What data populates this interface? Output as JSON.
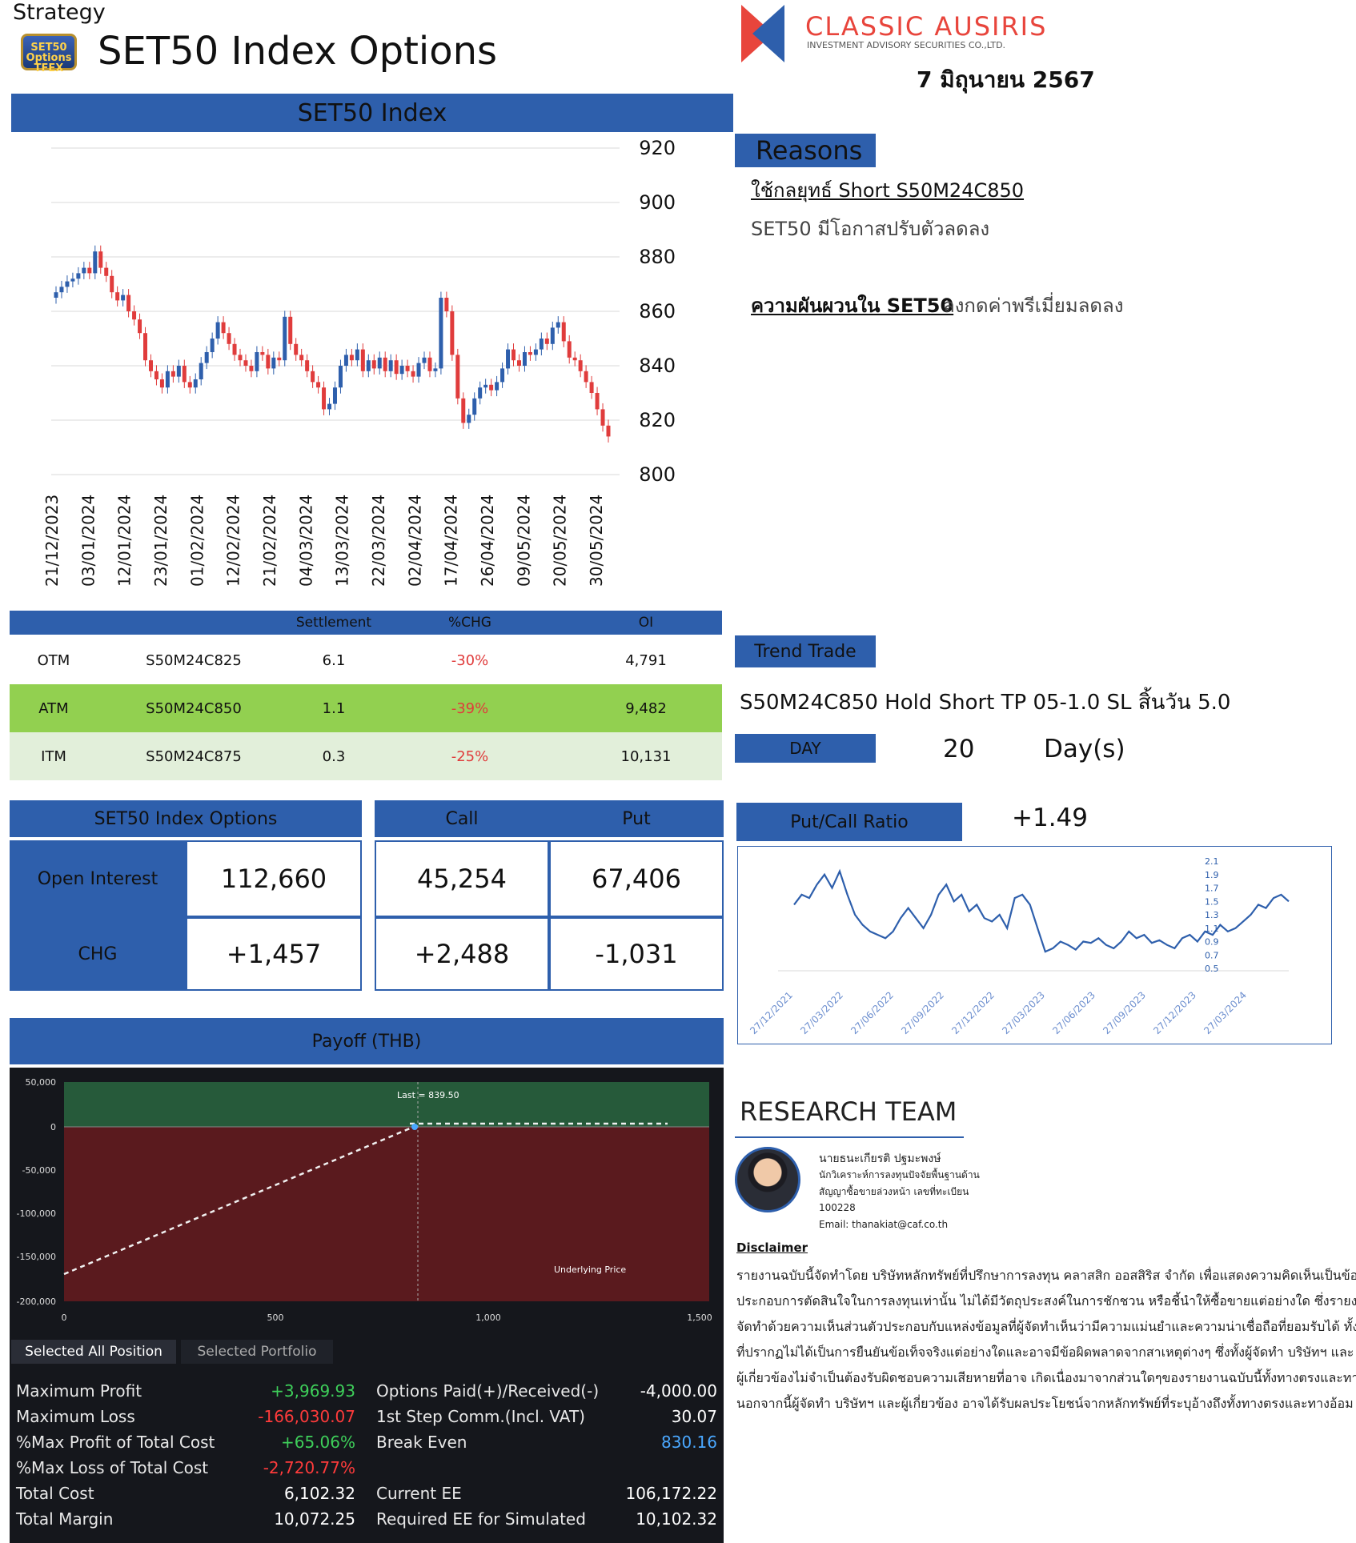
{
  "header": {
    "strategy_label": "Strategy",
    "logo_text": "SET50 Options TFEX",
    "title": "SET50 Index Options",
    "brand_name": "CLASSIC AUSIRIS",
    "brand_sub": "INVESTMENT ADVISORY SECURITIES CO.,LTD.",
    "date": "7 มิถุนายน 2567"
  },
  "index_chart_title": "SET50 Index",
  "chart_data": [
    {
      "type": "candlestick",
      "title": "SET50 Index",
      "ylim": [
        800,
        920
      ],
      "yticks": [
        920,
        900,
        880,
        860,
        840,
        820,
        800
      ],
      "xticks": [
        "21/12/2023",
        "03/01/2024",
        "12/01/2024",
        "23/01/2024",
        "01/02/2024",
        "12/02/2024",
        "21/02/2024",
        "04/03/2024",
        "13/03/2024",
        "22/03/2024",
        "02/04/2024",
        "17/04/2024",
        "26/04/2024",
        "09/05/2024",
        "20/05/2024",
        "30/05/2024"
      ],
      "closes": [
        867,
        869,
        871,
        872,
        874,
        876,
        874,
        882,
        876,
        873,
        867,
        864,
        866,
        860,
        857,
        852,
        842,
        838,
        835,
        832,
        838,
        836,
        840,
        834,
        832,
        835,
        841,
        845,
        850,
        856,
        852,
        848,
        844,
        842,
        840,
        838,
        845,
        844,
        839,
        843,
        842,
        858,
        848,
        844,
        842,
        838,
        834,
        832,
        824,
        826,
        832,
        840,
        844,
        842,
        846,
        838,
        842,
        839,
        843,
        838,
        842,
        837,
        840,
        838,
        836,
        841,
        843,
        838,
        839,
        865,
        860,
        844,
        828,
        819,
        822,
        828,
        832,
        833,
        831,
        834,
        839,
        846,
        842,
        840,
        845,
        844,
        846,
        850,
        848,
        854,
        856,
        849,
        843,
        842,
        838,
        834,
        830,
        824,
        818,
        814
      ],
      "series_colors": {
        "up": "#2e5fac",
        "down": "#e03c3c"
      }
    },
    {
      "type": "line",
      "title": "Put/Call Ratio",
      "ylim": [
        0.5,
        2.1
      ],
      "yticks": [
        2.1,
        1.9,
        1.7,
        1.5,
        1.3,
        1.1,
        0.9,
        0.7,
        0.5
      ],
      "xticks": [
        "27/12/2021",
        "27/03/2022",
        "27/06/2022",
        "27/09/2022",
        "27/12/2022",
        "27/03/2023",
        "27/06/2023",
        "27/09/2023",
        "27/12/2023",
        "27/03/2024"
      ],
      "values": [
        1.45,
        1.6,
        1.55,
        1.75,
        1.9,
        1.7,
        1.95,
        1.6,
        1.3,
        1.15,
        1.05,
        1.0,
        0.95,
        1.05,
        1.25,
        1.4,
        1.25,
        1.1,
        1.3,
        1.6,
        1.75,
        1.5,
        1.6,
        1.35,
        1.45,
        1.25,
        1.2,
        1.3,
        1.1,
        1.55,
        1.6,
        1.45,
        1.1,
        0.75,
        0.8,
        0.9,
        0.85,
        0.78,
        0.9,
        0.88,
        0.95,
        0.85,
        0.8,
        0.9,
        1.05,
        0.95,
        1.0,
        0.88,
        0.92,
        0.85,
        0.8,
        0.95,
        1.0,
        0.9,
        1.05,
        1.0,
        1.15,
        1.05,
        1.1,
        1.2,
        1.3,
        1.45,
        1.4,
        1.55,
        1.6,
        1.5
      ],
      "color": "#2e5fac"
    }
  ],
  "options_table": {
    "headers": [
      "",
      "",
      "Settlement",
      "%CHG",
      "OI"
    ],
    "rows": [
      {
        "type": "OTM",
        "series": "S50M24C825",
        "settlement": "6.1",
        "chg": "-30%",
        "oi": "4,791"
      },
      {
        "type": "ATM",
        "series": "S50M24C850",
        "settlement": "1.1",
        "chg": "-39%",
        "oi": "9,482"
      },
      {
        "type": "ITM",
        "series": "S50M24C875",
        "settlement": "0.3",
        "chg": "-25%",
        "oi": "10,131"
      }
    ]
  },
  "reasons": {
    "header": "Reasons",
    "strategy": "ใช้กลยุทธ์ Short S50M24C850",
    "line1": "SET50 มีโอกาสปรับตัวลดลง",
    "line2_key": "ความผันผวนใน SET50",
    "line2_rest": "ลงกดค่าพรีเมี่ยมลดลง"
  },
  "trend": {
    "header": "Trend Trade",
    "text": "S50M24C850 Hold Short TP 05-1.0 SL สิ้นวัน 5.0",
    "day_label": "DAY",
    "day_value": "20",
    "day_unit": "Day(s)"
  },
  "oi_summary": {
    "title": "SET50 Index Options",
    "call_label": "Call",
    "put_label": "Put",
    "oi_label": "Open Interest",
    "chg_label": "CHG",
    "oi_total": "112,660",
    "chg_total": "+1,457",
    "oi_call": "45,254",
    "oi_put": "67,406",
    "chg_call": "+2,488",
    "chg_put": "-1,031"
  },
  "pcr": {
    "label": "Put/Call Ratio",
    "value": "+1.49"
  },
  "payoff": {
    "title": "Payoff (THB)",
    "y_ticks": [
      "50,000",
      "0",
      "-50,000",
      "-100,000",
      "-150,000",
      "-200,000"
    ],
    "x_ticks": [
      "0",
      "500",
      "1,000",
      "1,500"
    ],
    "last_label": "Last = 839.50",
    "underlying_label": "Underlying Price",
    "tab_selected": "Selected All Position",
    "tab_other": "Selected Portfolio",
    "stats_left": [
      {
        "label": "Maximum Profit",
        "value": "+3,969.93",
        "color": "#3ecf5a"
      },
      {
        "label": "Maximum Loss",
        "value": "-166,030.07",
        "color": "#ff3b3b"
      },
      {
        "label": "%Max Profit of Total Cost",
        "value": "+65.06%",
        "color": "#3ecf5a"
      },
      {
        "label": "%Max Loss of Total Cost",
        "value": "-2,720.77%",
        "color": "#ff3b3b"
      },
      {
        "label": "Total Cost",
        "value": "6,102.32",
        "color": "#ffffff"
      },
      {
        "label": "Total Margin",
        "value": "10,072.25",
        "color": "#ffffff"
      }
    ],
    "stats_right": [
      {
        "label": "Options Paid(+)/Received(-)",
        "value": "-4,000.00",
        "color": "#ffffff"
      },
      {
        "label": "1st Step Comm.(Incl. VAT)",
        "value": "30.07",
        "color": "#ffffff"
      },
      {
        "label": "Break Even",
        "value": "830.16",
        "color": "#4aa8ff"
      },
      {
        "label": "",
        "value": "",
        "color": "#ffffff"
      },
      {
        "label": "Current EE",
        "value": "106,172.22",
        "color": "#ffffff"
      },
      {
        "label": "Required EE for Simulated",
        "value": "10,102.32",
        "color": "#ffffff"
      }
    ]
  },
  "team": {
    "title": "RESEARCH TEAM",
    "name": "นายธนะเกียรติ ปฐมะพงษ์",
    "role1": "นักวิเคราะห์การลงทุนปัจจัยพื้นฐานด้าน",
    "role2": "สัญญาซื้อขายล่วงหน้า เลขที่ทะเบียน",
    "reg": "100228",
    "email": "Email: thanakiat@caf.co.th"
  },
  "disclaimer": {
    "title": "Disclaimer",
    "lines": [
      "รายงานฉบับนี้จัดทำโดย บริษัทหลักทรัพย์ที่ปรึกษาการลงทุน คลาสสิก ออสสิริส จำกัด เพื่อแสดงความคิดเห็นเป็นข้อมูล",
      "ประกอบการตัดสินใจในการลงทุนเท่านั้น ไม่ได้มีวัตถุประสงค์ในการชักชวน หรือชี้นำให้ซื้อขายแต่อย่างใด ซึ่งรายงานนี้",
      "จัดทำด้วยความเห็นส่วนตัวประกอบกับแหล่งข้อมูลที่ผู้จัดทำเห็นว่ามีความแม่นยำและความน่าเชื่อถือที่ยอมรับได้ ทั้งนี้ข้อมูล",
      "ที่ปรากฏไม่ได้เป็นการยืนยันข้อเท็จจริงแต่อย่างใดและอาจมีข้อผิดพลาดจากสาเหตุต่างๆ ซึ่งทั้งผู้จัดทำ บริษัทฯ และ",
      "ผู้เกี่ยวข้องไม่จำเป็นต้องรับผิดชอบความเสียหายที่อาจ เกิดเนื่องมาจากส่วนใดๆของรายงานฉบับนี้ทั้งทางตรงและทางอ้อม",
      "นอกจากนี้ผู้จัดทำ บริษัทฯ และผู้เกี่ยวข้อง อาจได้รับผลประโยชน์จากหลักทรัพย์ที่ระบุอ้างถึงทั้งทางตรงและทางอ้อม"
    ]
  }
}
